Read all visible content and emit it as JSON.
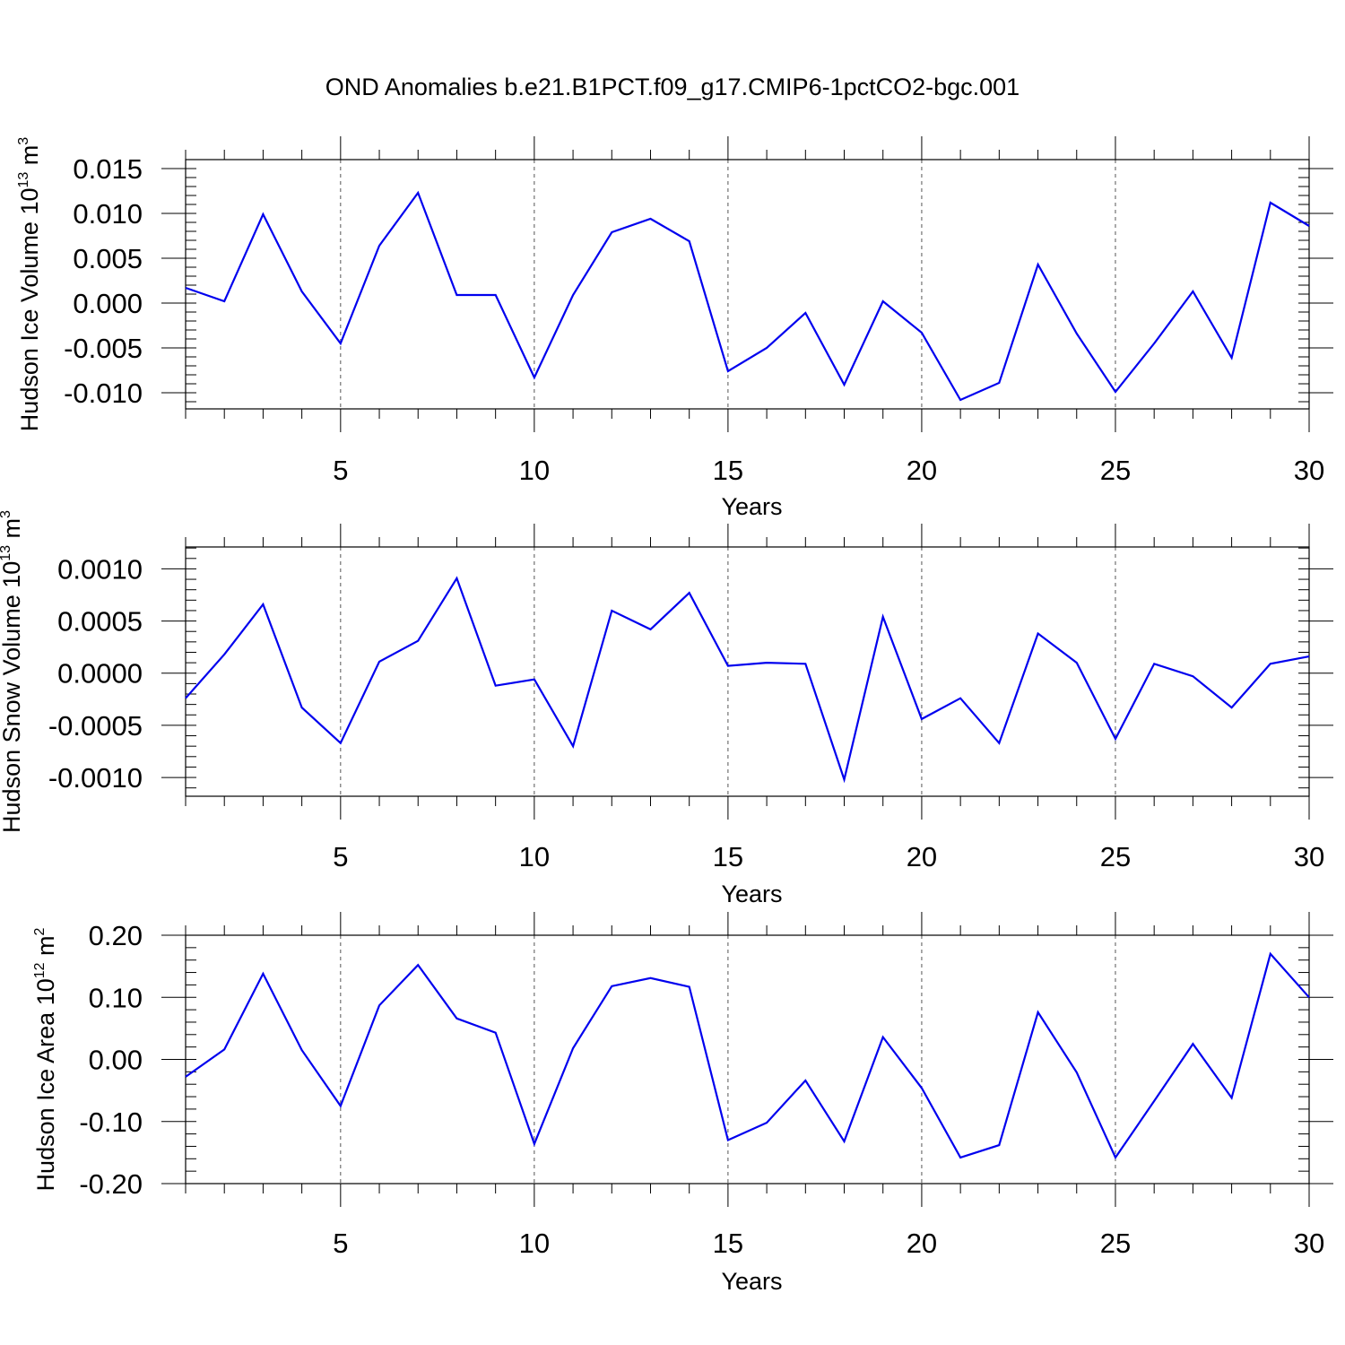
{
  "figure": {
    "title": "OND Anomalies b.e21.B1PCT.f09_g17.CMIP6-1pctCO2-bgc.001"
  },
  "chart_data": [
    {
      "type": "line",
      "xlabel": "Years",
      "ylabel": {
        "main": "Hudson Ice Volume 10",
        "exp": "13",
        "unit": " m",
        "unit_exp": "3"
      },
      "xlim": [
        1,
        30
      ],
      "ylim": [
        -0.0118,
        0.016
      ],
      "x_ticks": [
        5,
        10,
        15,
        20,
        25,
        30
      ],
      "x_tick_labels": [
        "5",
        "10",
        "15",
        "20",
        "25",
        "30"
      ],
      "y_ticks": [
        -0.01,
        -0.005,
        0.0,
        0.005,
        0.01,
        0.015
      ],
      "y_tick_labels": [
        "-0.010",
        "-0.005",
        "0.000",
        "0.005",
        "0.010",
        "0.015"
      ],
      "y_minor_step": 0.001,
      "x_gridlines": "dashed at major ticks",
      "color": "#0000ee",
      "x": [
        1,
        2,
        3,
        4,
        5,
        6,
        7,
        8,
        9,
        10,
        11,
        12,
        13,
        14,
        15,
        16,
        17,
        18,
        19,
        20,
        21,
        22,
        23,
        24,
        25,
        26,
        27,
        28,
        29,
        30
      ],
      "values": [
        0.0017,
        0.0002,
        0.0099,
        0.0013,
        -0.0045,
        0.0064,
        0.0123,
        0.0009,
        0.0009,
        -0.0083,
        0.0009,
        0.0079,
        0.0094,
        0.0069,
        -0.0076,
        -0.005,
        -0.0011,
        -0.0091,
        0.0002,
        -0.0033,
        -0.0108,
        -0.0089,
        0.0043,
        -0.0034,
        -0.0099,
        -0.0045,
        0.0013,
        -0.0061,
        0.0112,
        0.0086
      ]
    },
    {
      "type": "line",
      "xlabel": "Years",
      "ylabel": {
        "main": "Hudson Snow Volume 10",
        "exp": "13",
        "unit": " m",
        "unit_exp": "3"
      },
      "xlim": [
        1,
        30
      ],
      "ylim": [
        -0.00118,
        0.00121
      ],
      "x_ticks": [
        5,
        10,
        15,
        20,
        25,
        30
      ],
      "x_tick_labels": [
        "5",
        "10",
        "15",
        "20",
        "25",
        "30"
      ],
      "y_ticks": [
        -0.001,
        -0.0005,
        0.0,
        0.0005,
        0.001
      ],
      "y_tick_labels": [
        "-0.0010",
        "-0.0005",
        "0.0000",
        "0.0005",
        "0.0010"
      ],
      "y_minor_step": 0.0001,
      "x_gridlines": "dashed at major ticks",
      "color": "#0000ee",
      "x": [
        1,
        2,
        3,
        4,
        5,
        6,
        7,
        8,
        9,
        10,
        11,
        12,
        13,
        14,
        15,
        16,
        17,
        18,
        19,
        20,
        21,
        22,
        23,
        24,
        25,
        26,
        27,
        28,
        29,
        30
      ],
      "values": [
        -0.00024,
        0.00018,
        0.00066,
        -0.00033,
        -0.00067,
        0.00011,
        0.00031,
        0.00091,
        -0.00012,
        -6e-05,
        -0.0007,
        0.0006,
        0.00042,
        0.00077,
        7e-05,
        0.0001,
        9e-05,
        -0.00102,
        0.00054,
        -0.00044,
        -0.00024,
        -0.00067,
        0.00038,
        0.0001,
        -0.00063,
        9e-05,
        -3e-05,
        -0.00033,
        9e-05,
        0.00016
      ]
    },
    {
      "type": "line",
      "xlabel": "Years",
      "ylabel": {
        "main": "Hudson Ice Area 10",
        "exp": "12",
        "unit": " m",
        "unit_exp": "2"
      },
      "xlim": [
        1,
        30
      ],
      "ylim": [
        -0.2,
        0.2
      ],
      "x_ticks": [
        5,
        10,
        15,
        20,
        25,
        30
      ],
      "x_tick_labels": [
        "5",
        "10",
        "15",
        "20",
        "25",
        "30"
      ],
      "y_ticks": [
        -0.2,
        -0.1,
        0.0,
        0.1,
        0.2
      ],
      "y_tick_labels": [
        "-0.20",
        "-0.10",
        "0.00",
        "0.10",
        "0.20"
      ],
      "y_minor_step": 0.02,
      "x_gridlines": "dashed at major ticks",
      "color": "#0000ee",
      "x": [
        1,
        2,
        3,
        4,
        5,
        6,
        7,
        8,
        9,
        10,
        11,
        12,
        13,
        14,
        15,
        16,
        17,
        18,
        19,
        20,
        21,
        22,
        23,
        24,
        25,
        26,
        27,
        28,
        29,
        30
      ],
      "values": [
        -0.028,
        0.016,
        0.138,
        0.015,
        -0.075,
        0.087,
        0.152,
        0.066,
        0.043,
        -0.136,
        0.018,
        0.118,
        0.131,
        0.117,
        -0.13,
        -0.102,
        -0.034,
        -0.132,
        0.036,
        -0.046,
        -0.158,
        -0.138,
        0.076,
        -0.021,
        -0.158,
        -0.067,
        0.025,
        -0.062,
        0.17,
        0.1
      ]
    }
  ]
}
